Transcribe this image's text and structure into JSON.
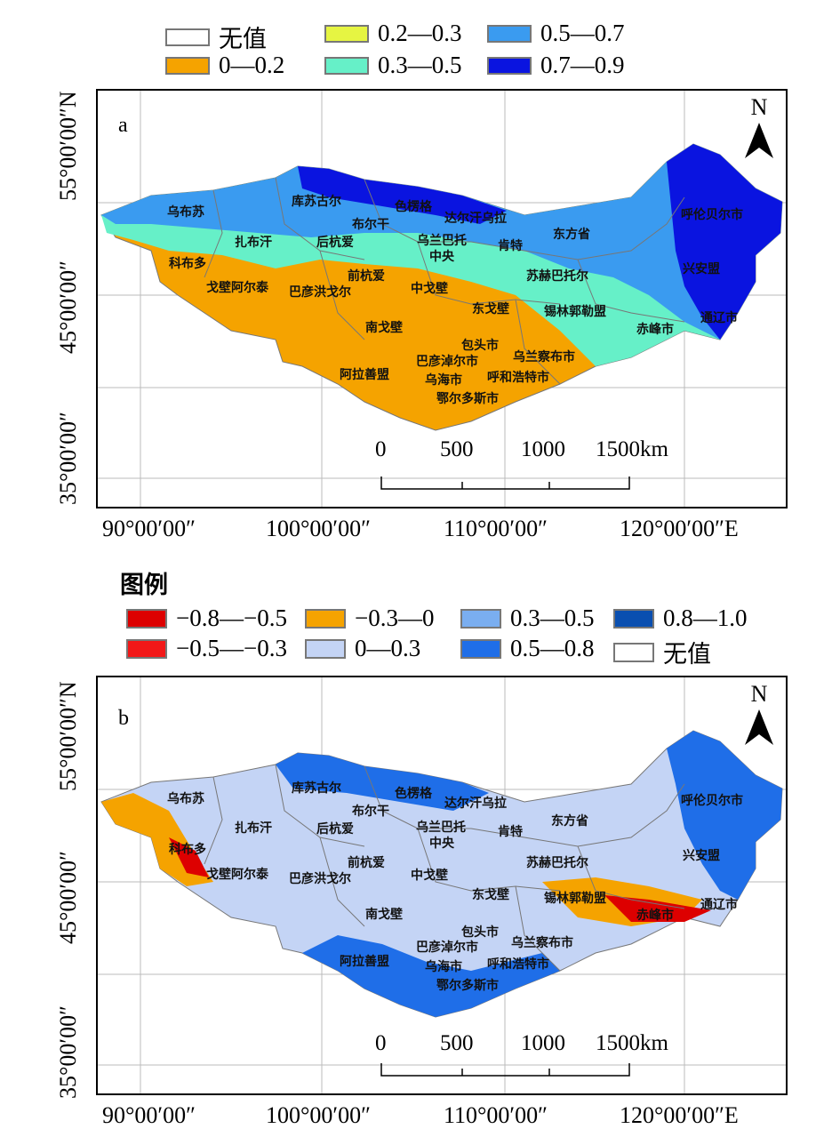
{
  "map_a": {
    "legend": [
      {
        "label": "无值",
        "color": "#ffffff"
      },
      {
        "label": "0—0.2",
        "color": "#f5a300"
      },
      {
        "label": "0.2—0.3",
        "color": "#e6f542"
      },
      {
        "label": "0.3—0.5",
        "color": "#66f0c8"
      },
      {
        "label": "0.5—0.7",
        "color": "#3a9bf0"
      },
      {
        "label": "0.7—0.9",
        "color": "#0a14e0"
      }
    ],
    "panel_letter": "a",
    "north": "N",
    "lat_labels": [
      "55°00′00″N",
      "45°00′00″",
      "35°00′00″"
    ],
    "lon_labels": [
      "90°00′00″",
      "100°00′00″",
      "110°00′00″",
      "120°00′00″E"
    ],
    "scale": [
      "0",
      "500",
      "1000",
      "1500km"
    ]
  },
  "map_b": {
    "legend_title": "图例",
    "legend": [
      {
        "label": "−0.8—−0.5",
        "color": "#dd0000"
      },
      {
        "label": "−0.5—−0.3",
        "color": "#f21818"
      },
      {
        "label": "−0.3—0",
        "color": "#f5a300"
      },
      {
        "label": "0—0.3",
        "color": "#c4d4f5"
      },
      {
        "label": "0.3—0.5",
        "color": "#7aaef0"
      },
      {
        "label": "0.5—0.8",
        "color": "#1f6ee8"
      },
      {
        "label": "0.8—1.0",
        "color": "#0a4fb0"
      },
      {
        "label": "无值",
        "color": "#ffffff"
      }
    ],
    "panel_letter": "b",
    "north": "N",
    "lat_labels": [
      "55°00′00″N",
      "45°00′00″",
      "35°00′00″"
    ],
    "lon_labels": [
      "90°00′00″",
      "100°00′00″",
      "110°00′00″",
      "120°00′00″E"
    ],
    "scale": [
      "0",
      "500",
      "1000",
      "1500km"
    ]
  },
  "cities": [
    "乌布苏",
    "库苏古尔",
    "色楞格",
    "达尔汗乌拉",
    "布尔干",
    "扎布汗",
    "后杭爱",
    "乌兰巴托",
    "中央",
    "肯特",
    "东方省",
    "呼伦贝尔市",
    "科布多",
    "前杭爱",
    "苏赫巴托尔",
    "兴安盟",
    "戈壁阿尔泰",
    "巴彦洪戈尔",
    "中戈壁",
    "东戈壁",
    "锡林郭勒盟",
    "通辽市",
    "南戈壁",
    "赤峰市",
    "包头市",
    "巴彦淖尔市",
    "乌兰察布市",
    "阿拉善盟",
    "乌海市",
    "呼和浩特市",
    "鄂尔多斯市"
  ]
}
